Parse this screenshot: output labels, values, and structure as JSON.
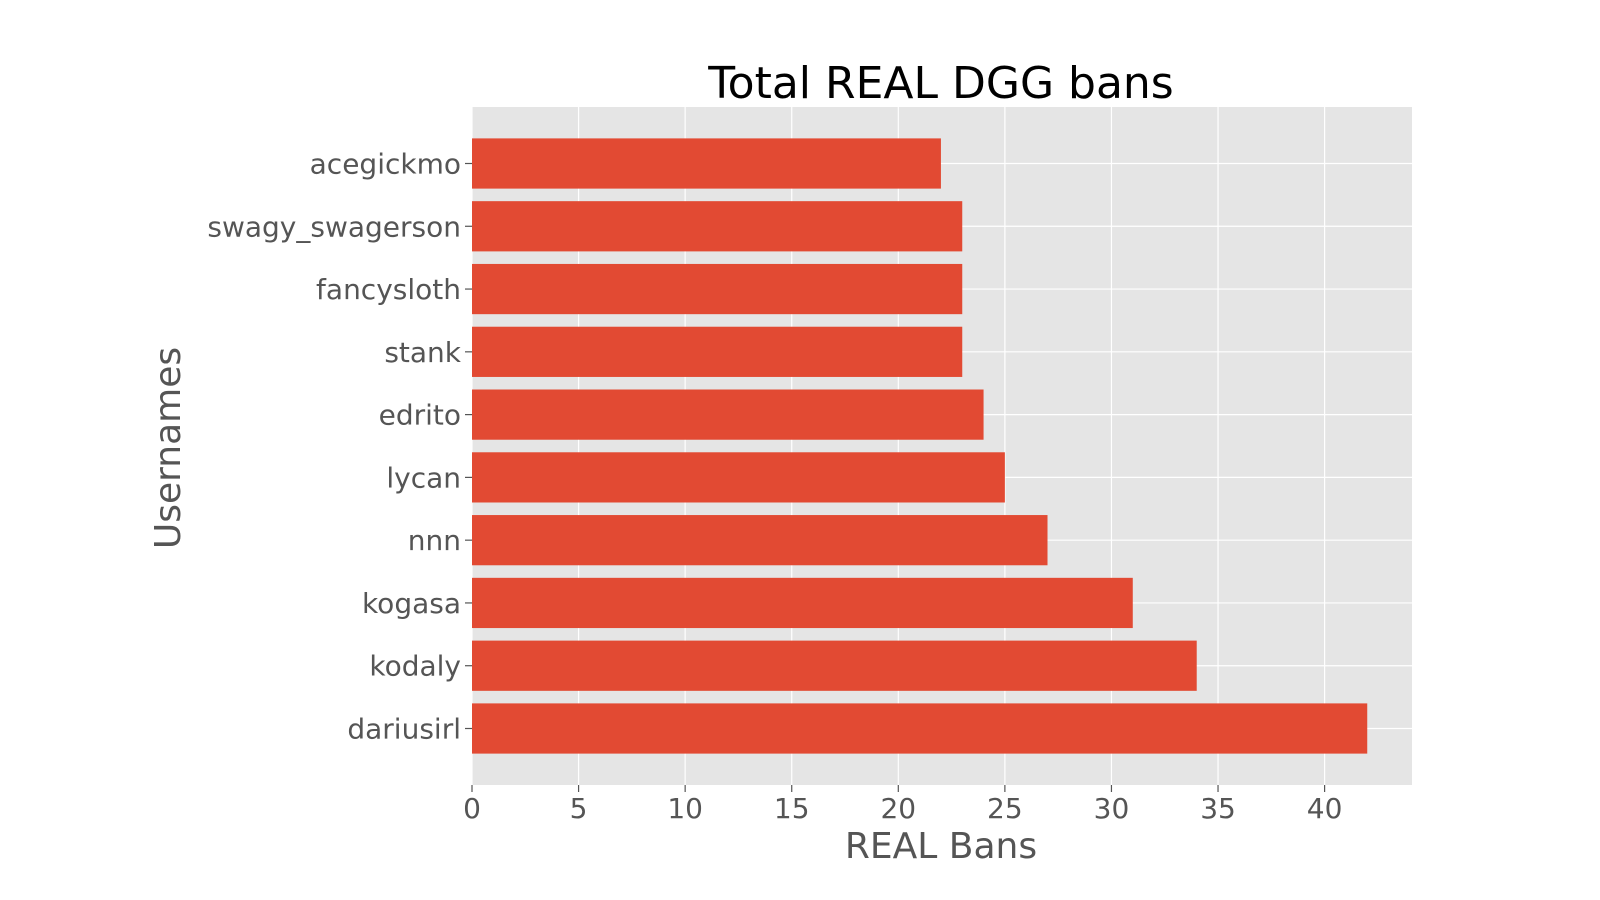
{
  "chart_data": {
    "type": "bar",
    "orientation": "horizontal",
    "title": "Total REAL DGG bans",
    "xlabel": "REAL Bans",
    "ylabel": "Usernames",
    "categories": [
      "dariusirl",
      "kodaly",
      "kogasa",
      "nnn",
      "lycan",
      "edrito",
      "stank",
      "fancysloth",
      "swagy_swagerson",
      "acegickmo"
    ],
    "values": [
      42,
      34,
      31,
      27,
      25,
      24,
      23,
      23,
      23,
      22
    ],
    "xlim": [
      0,
      44.1
    ],
    "xticks": [
      0,
      5,
      10,
      15,
      20,
      25,
      30,
      35,
      40
    ],
    "grid": true,
    "colors": {
      "bar": "#e24a33",
      "plot_background": "#e5e5e5",
      "grid": "#ffffff",
      "text": "#555555",
      "title": "#000000"
    }
  }
}
